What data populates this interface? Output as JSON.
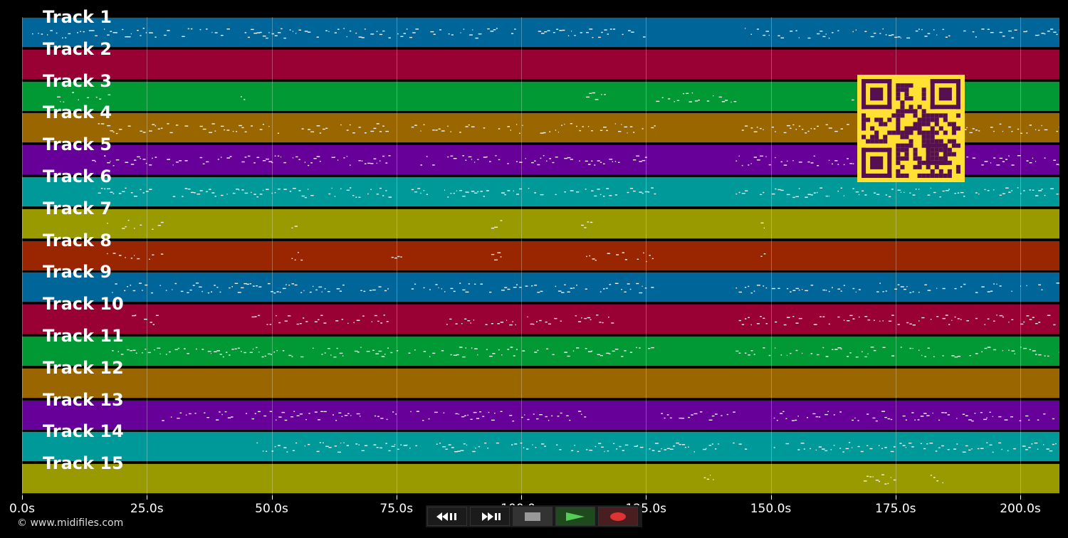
{
  "tracks": [
    {
      "label": "Track 1",
      "color": "#006699"
    },
    {
      "label": "Track 2",
      "color": "#990033"
    },
    {
      "label": "Track 3",
      "color": "#009933"
    },
    {
      "label": "Track 4",
      "color": "#996600"
    },
    {
      "label": "Track 5",
      "color": "#660099"
    },
    {
      "label": "Track 6",
      "color": "#009999"
    },
    {
      "label": "Track 7",
      "color": "#999900"
    },
    {
      "label": "Track 8",
      "color": "#992600"
    },
    {
      "label": "Track 9",
      "color": "#006699"
    },
    {
      "label": "Track 10",
      "color": "#990033"
    },
    {
      "label": "Track 11",
      "color": "#009933"
    },
    {
      "label": "Track 12",
      "color": "#996600"
    },
    {
      "label": "Track 13",
      "color": "#660099"
    },
    {
      "label": "Track 14",
      "color": "#009999"
    },
    {
      "label": "Track 15",
      "color": "#999900"
    }
  ],
  "timeline": {
    "ticks": [
      "0.0s",
      "25.0s",
      "50.0s",
      "75.0s",
      "100.0s",
      "125.0s",
      "150.0s",
      "175.0s",
      "200.0s"
    ],
    "duration_s": 207.5
  },
  "credit": "© www.midifiles.com",
  "controls": {
    "rewind_icon": "rewind-icon",
    "fast_forward_icon": "fast-forward-icon",
    "stop_icon": "stop-icon",
    "play_icon": "play-icon",
    "record_icon": "record-icon",
    "play_color": "#55cc55",
    "record_color": "#dd3333"
  },
  "qr_colors": {
    "light": "#ffe033",
    "dark": "#55104f"
  }
}
